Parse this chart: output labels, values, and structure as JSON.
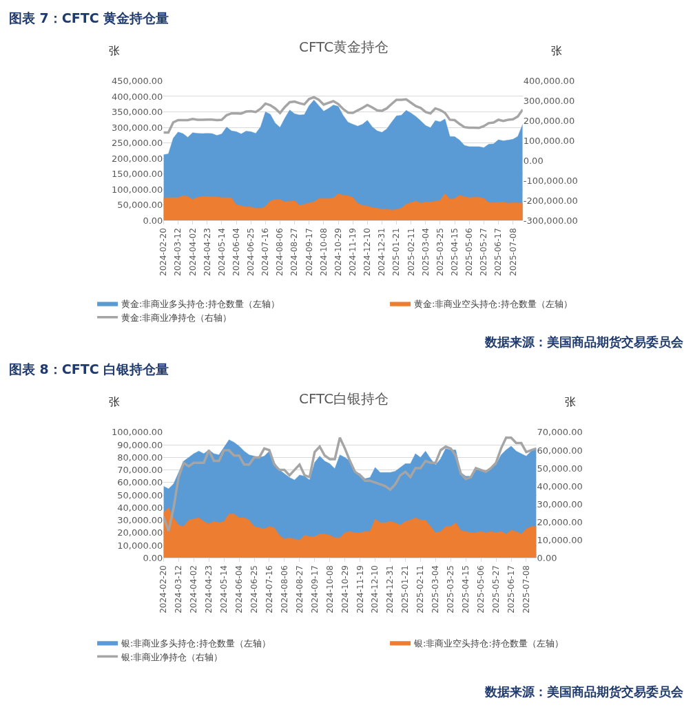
{
  "chart_data": [
    {
      "type": "area",
      "title": "图表 7：CFTC 黄金持仓量",
      "subtitle": "CFTC黄金持仓",
      "ylabel": "张",
      "y2label": "张",
      "grid": "y",
      "legend": "bottom",
      "marker": "none",
      "line_style": "solid",
      "annotations": [
        "数据来源：美国商品期货交易委员会"
      ],
      "categories": [
        "2024-02-20",
        null,
        null,
        "2024-03-12",
        null,
        null,
        "2024-04-02",
        null,
        null,
        "2024-04-23",
        null,
        null,
        "2024-05-14",
        null,
        null,
        "2024-06-04",
        null,
        null,
        "2024-06-25",
        null,
        null,
        "2024-07-16",
        null,
        null,
        "2024-08-06",
        null,
        null,
        "2024-08-27",
        null,
        null,
        "2024-09-17",
        null,
        null,
        "2024-10-08",
        null,
        null,
        "2024-10-29",
        null,
        null,
        "2024-11-19",
        null,
        null,
        "2024-12-10",
        null,
        null,
        "2024-12-31",
        null,
        null,
        "2025-01-21",
        null,
        null,
        "2025-02-11",
        null,
        null,
        "2025-03-04",
        null,
        null,
        "2025-03-25",
        null,
        null,
        "2025-04-15",
        null,
        null,
        "2025-05-06",
        null,
        null,
        "2025-05-27",
        null,
        null,
        "2025-06-17",
        null,
        null,
        "2025-07-08",
        null,
        null
      ],
      "series": [
        {
          "name": "黄金:非商业多头持仓:持仓数量（左轴）",
          "color": "#5b9bd5",
          "values": [
            212000,
            215000,
            265000,
            285000,
            280000,
            268000,
            283000,
            281000,
            280000,
            281000,
            280000,
            274000,
            279000,
            301000,
            289000,
            286000,
            279000,
            288000,
            286000,
            281000,
            302000,
            350000,
            342000,
            314000,
            300000,
            330000,
            356000,
            344000,
            340000,
            341000,
            370000,
            388000,
            370000,
            352000,
            361000,
            372000,
            368000,
            339000,
            317000,
            310000,
            304000,
            310000,
            323000,
            302000,
            289000,
            284000,
            295000,
            317000,
            337000,
            339000,
            355000,
            346000,
            335000,
            321000,
            306000,
            299000,
            322000,
            318000,
            327000,
            271000,
            270000,
            259000,
            242000,
            238000,
            238000,
            238000,
            235000,
            246000,
            247000,
            260000,
            257000,
            259000,
            262000,
            271000,
            310000
          ]
        },
        {
          "name": "黄金:非商业空头持仓:持仓数量（左轴）",
          "color": "#ed7d31",
          "values": [
            73000,
            74000,
            74000,
            74000,
            80000,
            78000,
            68000,
            75000,
            78000,
            78000,
            77000,
            76000,
            74000,
            74000,
            73000,
            51000,
            48000,
            44000,
            44000,
            40000,
            39000,
            46000,
            63000,
            68000,
            68000,
            60000,
            62000,
            64000,
            49000,
            52000,
            57000,
            60000,
            71000,
            71000,
            71000,
            73000,
            86000,
            82000,
            80000,
            75000,
            55000,
            49000,
            47000,
            42000,
            40000,
            36000,
            37000,
            34000,
            36000,
            40000,
            53000,
            58000,
            63000,
            56000,
            60000,
            60000,
            62000,
            65000,
            87000,
            69000,
            71000,
            82000,
            77000,
            74000,
            75000,
            75000,
            72000,
            58000,
            58000,
            58000,
            60000,
            56000,
            58000,
            57000,
            57000
          ]
        },
        {
          "name": "黄金:非商业净持仓（右轴）",
          "type": "line",
          "axis": "y2",
          "color": "#a5a5a5",
          "values": [
            141000,
            141000,
            192000,
            203000,
            203000,
            203000,
            209000,
            205000,
            205000,
            206000,
            206000,
            203000,
            205000,
            228000,
            237000,
            237000,
            236000,
            246000,
            248000,
            244000,
            260000,
            286000,
            278000,
            262000,
            239000,
            269000,
            293000,
            296000,
            288000,
            282000,
            309000,
            318000,
            305000,
            281000,
            290000,
            298000,
            284000,
            259000,
            241000,
            239000,
            252000,
            264000,
            279000,
            267000,
            252000,
            250000,
            262000,
            284000,
            305000,
            305000,
            307000,
            290000,
            273000,
            264000,
            244000,
            237000,
            262000,
            254000,
            239000,
            205000,
            203000,
            184000,
            168000,
            165000,
            165000,
            164000,
            173000,
            188000,
            191000,
            205000,
            199000,
            205000,
            207000,
            221000,
            256000
          ]
        }
      ],
      "ylim": [
        0,
        450000
      ],
      "yticks": [
        {
          "value": 0,
          "label": "0.00"
        },
        {
          "value": 50000,
          "label": "50,000.00"
        },
        {
          "value": 100000,
          "label": "100,000.00"
        },
        {
          "value": 150000,
          "label": "150,000.00"
        },
        {
          "value": 200000,
          "label": "200,000.00"
        },
        {
          "value": 250000,
          "label": "250,000.00"
        },
        {
          "value": 300000,
          "label": "300,000.00"
        },
        {
          "value": 350000,
          "label": "350,000.00"
        },
        {
          "value": 400000,
          "label": "400,000.00"
        },
        {
          "value": 450000,
          "label": "450,000.00"
        }
      ],
      "y2lim": [
        -300000,
        400000
      ],
      "y2ticks": [
        {
          "value": -300000,
          "label": "-300,000.00"
        },
        {
          "value": -200000,
          "label": "-200,000.00"
        },
        {
          "value": -100000,
          "label": "-100,000.00"
        },
        {
          "value": 0,
          "label": "0.00"
        },
        {
          "value": 100000,
          "label": "100,000.00"
        },
        {
          "value": 200000,
          "label": "200,000.00"
        },
        {
          "value": 300000,
          "label": "300,000.00"
        },
        {
          "value": 400000,
          "label": "400,000.00"
        }
      ]
    },
    {
      "type": "area",
      "title": "图表 8：CFTC 白银持仓量",
      "subtitle": "CFTC白银持仓",
      "ylabel": "张",
      "y2label": "张",
      "grid": "y",
      "legend": "bottom",
      "marker": "none",
      "line_style": "solid",
      "annotations": [
        "数据来源：美国商品期货交易委员会"
      ],
      "categories": [
        "2024-02-20",
        null,
        null,
        "2024-03-12",
        null,
        null,
        "2024-04-02",
        null,
        null,
        "2024-04-23",
        null,
        null,
        "2024-05-14",
        null,
        null,
        "2024-06-04",
        null,
        null,
        "2024-06-25",
        null,
        null,
        "2024-07-16",
        null,
        null,
        "2024-08-06",
        null,
        null,
        "2024-08-27",
        null,
        null,
        "2024-09-17",
        null,
        null,
        "2024-10-08",
        null,
        null,
        "2024-10-29",
        null,
        null,
        "2024-11-19",
        null,
        null,
        "2024-12-10",
        null,
        null,
        "2024-12-31",
        null,
        null,
        "2025-01-21",
        null,
        null,
        "2025-02-11",
        null,
        null,
        "2025-03-04",
        null,
        null,
        "2025-03-25",
        null,
        null,
        "2025-04-15",
        null,
        null,
        "2025-05-06",
        null,
        null,
        "2025-05-27",
        null,
        null,
        "2025-06-17",
        null,
        null,
        "2025-07-08",
        null,
        null
      ],
      "series": [
        {
          "name": "银:非商业多头持仓:持仓数量（左轴）",
          "color": "#5b9bd5",
          "values": [
            57000,
            55000,
            59000,
            68000,
            77000,
            80000,
            83000,
            85000,
            83000,
            86000,
            83000,
            82000,
            88000,
            94000,
            92000,
            89000,
            85000,
            82000,
            81000,
            80000,
            81000,
            85000,
            76000,
            70000,
            67000,
            64000,
            62000,
            66000,
            65000,
            62000,
            76000,
            81000,
            77000,
            75000,
            71000,
            82000,
            80000,
            77000,
            68000,
            67000,
            63000,
            64000,
            72000,
            68000,
            68000,
            68000,
            69000,
            72000,
            75000,
            75000,
            83000,
            80000,
            85000,
            79000,
            74000,
            79000,
            87000,
            86000,
            86000,
            68000,
            65000,
            65000,
            71000,
            70000,
            68000,
            72000,
            74000,
            82000,
            86000,
            89000,
            85000,
            83000,
            81000,
            85000,
            87000
          ]
        },
        {
          "name": "银:非商业空头持仓:持仓数量（左轴）",
          "color": "#ed7d31",
          "values": [
            36000,
            40000,
            32000,
            26000,
            25000,
            30000,
            31000,
            32000,
            29000,
            27000,
            29000,
            28000,
            29000,
            35000,
            35000,
            32000,
            32000,
            30000,
            25000,
            24000,
            23000,
            25000,
            24000,
            18000,
            15000,
            16000,
            15000,
            14000,
            18000,
            17000,
            17000,
            19000,
            19000,
            18000,
            16000,
            16000,
            20000,
            21000,
            20000,
            20000,
            21000,
            21000,
            31000,
            28000,
            28000,
            29000,
            28000,
            26000,
            29000,
            30000,
            32000,
            30000,
            30000,
            25000,
            20000,
            21000,
            25000,
            25000,
            28000,
            22000,
            21000,
            20000,
            20000,
            21000,
            20000,
            21000,
            20000,
            21000,
            19000,
            22000,
            21000,
            19000,
            23000,
            25000,
            25000
          ]
        },
        {
          "name": "银:非商业净持仓（右轴）",
          "type": "line",
          "axis": "y2",
          "color": "#a5a5a5",
          "values": [
            23000,
            15000,
            28000,
            45000,
            53000,
            51000,
            53000,
            53000,
            53000,
            60000,
            54000,
            54000,
            60000,
            60000,
            57000,
            57000,
            52000,
            52000,
            56000,
            56000,
            61000,
            60000,
            52000,
            49000,
            49000,
            46000,
            49000,
            52000,
            46000,
            45000,
            59000,
            62000,
            57000,
            55000,
            55000,
            67000,
            61000,
            54000,
            48000,
            46000,
            43000,
            43000,
            42000,
            41000,
            40000,
            38000,
            41000,
            46000,
            48000,
            45000,
            50000,
            50000,
            54000,
            53000,
            53000,
            60000,
            62000,
            61000,
            57000,
            47000,
            44000,
            45000,
            50000,
            49000,
            48000,
            50000,
            53000,
            61000,
            67000,
            67000,
            64000,
            64000,
            59000,
            60000,
            61000
          ]
        }
      ],
      "ylim": [
        0,
        100000
      ],
      "yticks": [
        {
          "value": 0,
          "label": "0.00"
        },
        {
          "value": 10000,
          "label": "10,000.00"
        },
        {
          "value": 20000,
          "label": "20,000.00"
        },
        {
          "value": 30000,
          "label": "30,000.00"
        },
        {
          "value": 40000,
          "label": "40,000.00"
        },
        {
          "value": 50000,
          "label": "50,000.00"
        },
        {
          "value": 60000,
          "label": "60,000.00"
        },
        {
          "value": 70000,
          "label": "70,000.00"
        },
        {
          "value": 80000,
          "label": "80,000.00"
        },
        {
          "value": 90000,
          "label": "90,000.00"
        },
        {
          "value": 100000,
          "label": "100,000.00"
        }
      ],
      "y2lim": [
        0,
        70000
      ],
      "y2ticks": [
        {
          "value": 0,
          "label": "0.00"
        },
        {
          "value": 10000,
          "label": "10,000.00"
        },
        {
          "value": 20000,
          "label": "20,000.00"
        },
        {
          "value": 30000,
          "label": "30,000.00"
        },
        {
          "value": 40000,
          "label": "40,000.00"
        },
        {
          "value": 50000,
          "label": "50,000.00"
        },
        {
          "value": 60000,
          "label": "60,000.00"
        },
        {
          "value": 70000,
          "label": "70,000.00"
        }
      ]
    }
  ]
}
